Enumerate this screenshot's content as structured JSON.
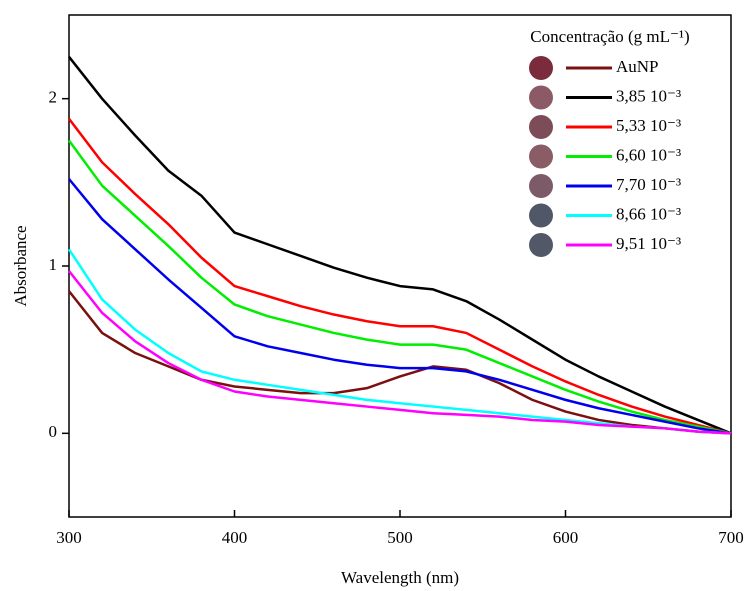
{
  "chart_data": {
    "type": "line",
    "x_label": "Wavelength (nm)",
    "y_label": "Absorbance",
    "legend_title": "Concentração (g mL⁻¹)",
    "legend": "top-right",
    "x": [
      300,
      320,
      340,
      360,
      380,
      400,
      420,
      440,
      460,
      480,
      500,
      520,
      540,
      560,
      580,
      600,
      620,
      640,
      660,
      680,
      700
    ],
    "xlim": [
      300,
      700
    ],
    "xticks": [
      300,
      400,
      500,
      600,
      700
    ],
    "ylim": [
      -0.5,
      2.5
    ],
    "yticks": [
      0,
      1,
      2
    ],
    "series": [
      {
        "name": "AuNP",
        "color": "#7b1010",
        "swatch": "#7a2c3c",
        "values": [
          0.85,
          0.6,
          0.48,
          0.4,
          0.32,
          0.28,
          0.26,
          0.24,
          0.24,
          0.27,
          0.34,
          0.4,
          0.38,
          0.3,
          0.2,
          0.13,
          0.08,
          0.05,
          0.03,
          0.01,
          0
        ]
      },
      {
        "name": "3,85 10⁻³",
        "color": "#000000",
        "swatch": "#8c5a66",
        "values": [
          2.25,
          2.0,
          1.78,
          1.57,
          1.42,
          1.2,
          1.13,
          1.06,
          0.99,
          0.93,
          0.88,
          0.86,
          0.79,
          0.68,
          0.56,
          0.44,
          0.34,
          0.25,
          0.16,
          0.08,
          0
        ]
      },
      {
        "name": "5,33 10⁻³",
        "color": "#ff0000",
        "swatch": "#7c4c58",
        "values": [
          1.88,
          1.62,
          1.43,
          1.25,
          1.05,
          0.88,
          0.82,
          0.76,
          0.71,
          0.67,
          0.64,
          0.64,
          0.6,
          0.5,
          0.4,
          0.31,
          0.23,
          0.16,
          0.1,
          0.05,
          0
        ]
      },
      {
        "name": "6,60 10⁻³",
        "color": "#00ee00",
        "swatch": "#8a5c66",
        "values": [
          1.75,
          1.48,
          1.3,
          1.12,
          0.93,
          0.77,
          0.7,
          0.65,
          0.6,
          0.56,
          0.53,
          0.53,
          0.5,
          0.42,
          0.34,
          0.26,
          0.19,
          0.13,
          0.08,
          0.04,
          0
        ]
      },
      {
        "name": "7,70 10⁻³",
        "color": "#0000ee",
        "swatch": "#7c5a68",
        "values": [
          1.52,
          1.28,
          1.1,
          0.92,
          0.75,
          0.58,
          0.52,
          0.48,
          0.44,
          0.41,
          0.39,
          0.39,
          0.37,
          0.32,
          0.26,
          0.2,
          0.15,
          0.11,
          0.07,
          0.03,
          0
        ]
      },
      {
        "name": "8,66 10⁻³",
        "color": "#00ffff",
        "swatch": "#505868",
        "values": [
          1.1,
          0.8,
          0.62,
          0.48,
          0.37,
          0.32,
          0.29,
          0.26,
          0.23,
          0.2,
          0.18,
          0.16,
          0.14,
          0.12,
          0.1,
          0.08,
          0.06,
          0.04,
          0.03,
          0.01,
          0
        ]
      },
      {
        "name": "9,51 10⁻³",
        "color": "#ff00ff",
        "swatch": "#525868",
        "values": [
          0.97,
          0.72,
          0.55,
          0.42,
          0.32,
          0.25,
          0.22,
          0.2,
          0.18,
          0.16,
          0.14,
          0.12,
          0.11,
          0.1,
          0.08,
          0.07,
          0.05,
          0.04,
          0.03,
          0.01,
          0
        ]
      }
    ]
  }
}
